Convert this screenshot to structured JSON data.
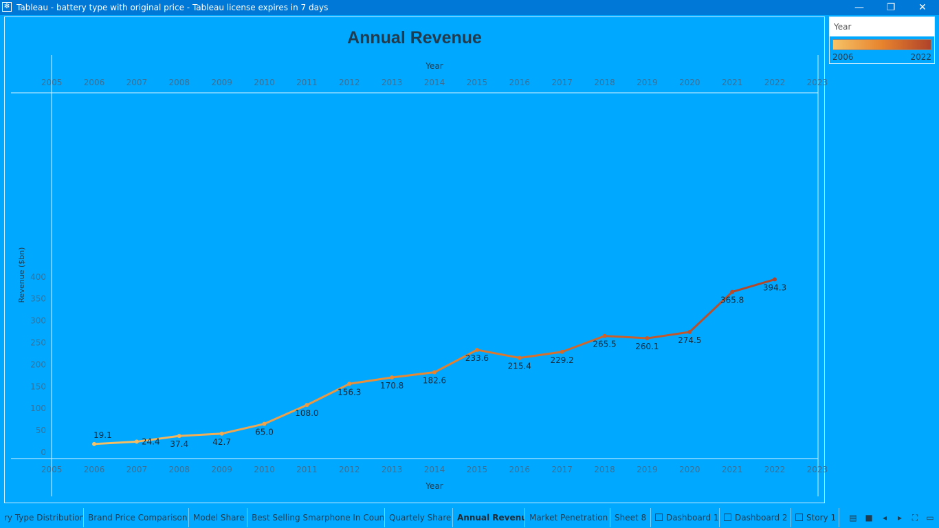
{
  "window": {
    "title": "Tableau - battery type with original price - Tableau license expires in 7 days",
    "app_icon": "tableau-logo-icon",
    "buttons": [
      "minimize-icon",
      "restore-icon",
      "close-icon"
    ]
  },
  "legend": {
    "title": "Year",
    "min": "2006",
    "max": "2022"
  },
  "chart_data": {
    "type": "line",
    "title": "Annual Revenue",
    "xlabel": "Year",
    "ylabel": "Revenue ($bn)",
    "x_ticks": [
      "2005",
      "2006",
      "2007",
      "2008",
      "2009",
      "2010",
      "2011",
      "2012",
      "2013",
      "2014",
      "2015",
      "2016",
      "2017",
      "2018",
      "2019",
      "2020",
      "2021",
      "2022",
      "2023"
    ],
    "y_ticks": [
      0,
      50,
      100,
      150,
      200,
      250,
      300,
      350,
      400
    ],
    "xlim": [
      2005,
      2023
    ],
    "ylim": [
      0,
      400
    ],
    "x": [
      2006,
      2007,
      2008,
      2009,
      2010,
      2011,
      2012,
      2013,
      2014,
      2015,
      2016,
      2017,
      2018,
      2019,
      2020,
      2021,
      2022
    ],
    "values": [
      19.1,
      24.4,
      37.4,
      42.7,
      65.0,
      108.0,
      156.3,
      170.8,
      182.6,
      233.6,
      215.4,
      229.2,
      265.5,
      260.1,
      274.5,
      365.8,
      394.3
    ],
    "labels": [
      "19.1",
      "24.4",
      "37.4",
      "42.7",
      "65.0",
      "108.0",
      "156.3",
      "170.8",
      "182.6",
      "233.6",
      "215.4",
      "229.2",
      "265.5",
      "260.1",
      "274.5",
      "365.8",
      "394.3"
    ],
    "color_scale": [
      "#f6c266",
      "#e7832e",
      "#b0432a"
    ],
    "grid": false
  },
  "tabs": [
    {
      "label": "ry Type Distribution",
      "icon": ""
    },
    {
      "label": "Brand Price Comparison",
      "icon": ""
    },
    {
      "label": "Model Share",
      "icon": ""
    },
    {
      "label": "Best Selling Smarphone In Coun...",
      "icon": ""
    },
    {
      "label": "Quartely Share",
      "icon": ""
    },
    {
      "label": "Annual Revenue",
      "icon": "",
      "active": true
    },
    {
      "label": "Market Penetration",
      "icon": ""
    },
    {
      "label": "Sheet 8",
      "icon": ""
    },
    {
      "label": "Dashboard 1",
      "icon": "dashboard-icon"
    },
    {
      "label": "Dashboard 2",
      "icon": "dashboard-icon"
    },
    {
      "label": "Story 1",
      "icon": "story-icon"
    }
  ],
  "nav_icons": [
    "show-filmstrip-icon",
    "show-tabs-icon",
    "prev-sheet-icon",
    "next-sheet-icon",
    "fullscreen-icon",
    "presentation-icon"
  ]
}
